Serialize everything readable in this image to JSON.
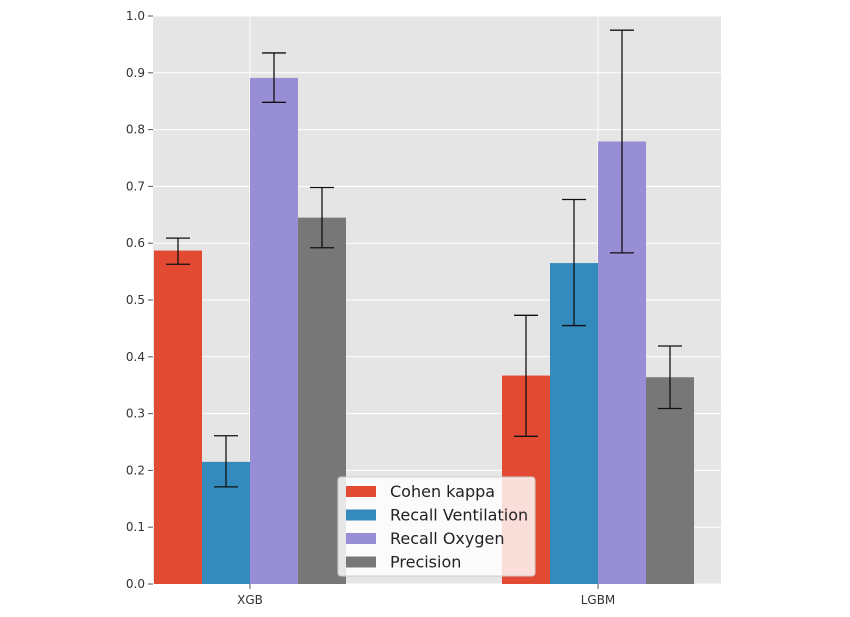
{
  "chart_data": {
    "type": "bar",
    "title": "",
    "xlabel": "",
    "ylabel": "",
    "categories": [
      "XGB",
      "LGBM"
    ],
    "ylim": [
      0.0,
      1.0
    ],
    "yticks": [
      "0.0",
      "0.1",
      "0.2",
      "0.3",
      "0.4",
      "0.5",
      "0.6",
      "0.7",
      "0.8",
      "0.9",
      "1.0"
    ],
    "grid": true,
    "legend_position": "bottom-center",
    "series": [
      {
        "name": "Cohen kappa",
        "color": "#e24a33",
        "values": [
          0.587,
          0.367
        ],
        "err_low": [
          0.563,
          0.26
        ],
        "err_high": [
          0.609,
          0.473
        ]
      },
      {
        "name": "Recall Ventilation",
        "color": "#348abd",
        "values": [
          0.215,
          0.565
        ],
        "err_low": [
          0.171,
          0.455
        ],
        "err_high": [
          0.261,
          0.677
        ]
      },
      {
        "name": "Recall Oxygen",
        "color": "#988ed5",
        "values": [
          0.891,
          0.779
        ],
        "err_low": [
          0.848,
          0.583
        ],
        "err_high": [
          0.935,
          0.975
        ]
      },
      {
        "name": "Precision",
        "color": "#777777",
        "values": [
          0.645,
          0.364
        ],
        "err_low": [
          0.592,
          0.309
        ],
        "err_high": [
          0.698,
          0.419
        ]
      }
    ]
  }
}
